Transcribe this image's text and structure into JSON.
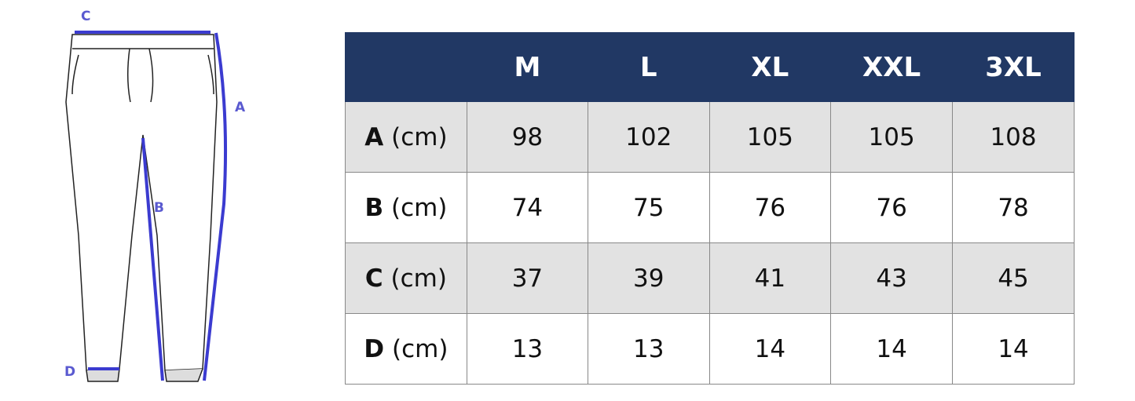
{
  "diagram": {
    "labels": {
      "a": "A",
      "b": "B",
      "c": "C",
      "d": "D"
    }
  },
  "table": {
    "columns": [
      "M",
      "L",
      "XL",
      "XXL",
      "3XL"
    ],
    "rows": [
      {
        "label": "A",
        "unit": "(cm)",
        "values": [
          98,
          102,
          105,
          105,
          108
        ]
      },
      {
        "label": "B",
        "unit": "(cm)",
        "values": [
          74,
          75,
          76,
          76,
          78
        ]
      },
      {
        "label": "C",
        "unit": "(cm)",
        "values": [
          37,
          39,
          41,
          43,
          45
        ]
      },
      {
        "label": "D",
        "unit": "(cm)",
        "values": [
          13,
          13,
          14,
          14,
          14
        ]
      }
    ]
  }
}
